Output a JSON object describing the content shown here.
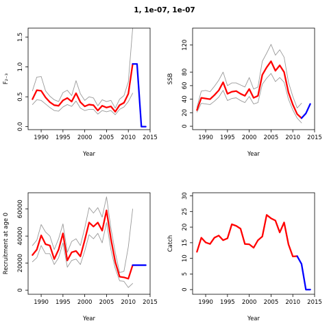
{
  "figure": {
    "title": "1, 1e-07, 1e-07"
  },
  "colors": {
    "estimate": "#ff0000",
    "projection": "#0000ff",
    "bounds": "#999999",
    "axis": "#000000"
  },
  "chart_data": [
    {
      "id": "F",
      "type": "line",
      "xlabel": "Year",
      "ylabel": "F₂₋₃",
      "xlim": [
        1987,
        2015
      ],
      "ylim": [
        -0.05,
        1.65
      ],
      "xticks": [
        1990,
        1995,
        2000,
        2005,
        2010,
        2015
      ],
      "yticks": [
        0.0,
        0.5,
        1.0,
        1.5
      ],
      "ytick_labels": [
        "0.0",
        "0.5",
        "1.0",
        "1.5"
      ],
      "series": [
        {
          "role": "estimate",
          "color": "#ff0000",
          "x": [
            1988,
            1989,
            1990,
            1991,
            1992,
            1993,
            1994,
            1995,
            1996,
            1997,
            1998,
            1999,
            2000,
            2001,
            2002,
            2003,
            2004,
            2005,
            2006,
            2007,
            2008,
            2009,
            2010,
            2011
          ],
          "y": [
            0.46,
            0.61,
            0.6,
            0.49,
            0.41,
            0.36,
            0.35,
            0.44,
            0.48,
            0.42,
            0.56,
            0.41,
            0.34,
            0.37,
            0.36,
            0.27,
            0.35,
            0.32,
            0.34,
            0.25,
            0.36,
            0.4,
            0.55,
            1.05
          ]
        },
        {
          "role": "upper",
          "color": "#999999",
          "x": [
            1988,
            1989,
            1990,
            1991,
            1992,
            1993,
            1994,
            1995,
            1996,
            1997,
            1998,
            1999,
            2000,
            2001,
            2002,
            2003,
            2004,
            2005,
            2006,
            2007,
            2008,
            2009,
            2010,
            2011
          ],
          "y": [
            0.6,
            0.83,
            0.84,
            0.6,
            0.51,
            0.45,
            0.42,
            0.57,
            0.61,
            0.52,
            0.77,
            0.55,
            0.44,
            0.5,
            0.48,
            0.35,
            0.45,
            0.42,
            0.44,
            0.31,
            0.46,
            0.52,
            0.75,
            1.65
          ]
        },
        {
          "role": "lower",
          "color": "#999999",
          "x": [
            1988,
            1989,
            1990,
            1991,
            1992,
            1993,
            1994,
            1995,
            1996,
            1997,
            1998,
            1999,
            2000,
            2001,
            2002,
            2003,
            2004,
            2005,
            2006,
            2007,
            2008,
            2009,
            2010,
            2011
          ],
          "y": [
            0.37,
            0.45,
            0.44,
            0.38,
            0.32,
            0.27,
            0.26,
            0.33,
            0.37,
            0.34,
            0.43,
            0.31,
            0.27,
            0.29,
            0.29,
            0.21,
            0.27,
            0.25,
            0.27,
            0.2,
            0.29,
            0.33,
            0.42,
            0.56
          ]
        },
        {
          "role": "projection",
          "color": "#0000ff",
          "x": [
            2011,
            2012,
            2013,
            2014
          ],
          "y": [
            1.05,
            1.05,
            0.0,
            0.0
          ]
        }
      ]
    },
    {
      "id": "SSB",
      "type": "line",
      "xlabel": "Year",
      "ylabel": "SSB",
      "xlim": [
        1987,
        2015
      ],
      "ylim": [
        -5,
        145
      ],
      "xticks": [
        1990,
        1995,
        2000,
        2005,
        2010,
        2015
      ],
      "yticks": [
        0,
        20,
        40,
        60,
        80,
        120
      ],
      "ytick_labels": [
        "0",
        "20",
        "40",
        "60",
        "80",
        "120"
      ],
      "series": [
        {
          "role": "estimate",
          "color": "#ff0000",
          "x": [
            1988,
            1989,
            1990,
            1991,
            1992,
            1993,
            1994,
            1995,
            1996,
            1997,
            1998,
            1999,
            2000,
            2001,
            2002,
            2003,
            2004,
            2005,
            2006,
            2007,
            2008,
            2009,
            2010,
            2011,
            2012
          ],
          "y": [
            24,
            42,
            41,
            40,
            46,
            53,
            65,
            48,
            51,
            52,
            48,
            45,
            55,
            42,
            45,
            76,
            87,
            96,
            82,
            90,
            80,
            50,
            32,
            18,
            12
          ]
        },
        {
          "role": "upper",
          "color": "#999999",
          "x": [
            1988,
            1989,
            1990,
            1991,
            1992,
            1993,
            1994,
            1995,
            1996,
            1997,
            1998,
            1999,
            2000,
            2001,
            2002,
            2003,
            2004,
            2005,
            2006,
            2007,
            2008,
            2009,
            2010,
            2011,
            2012
          ],
          "y": [
            28,
            52,
            53,
            51,
            59,
            68,
            80,
            60,
            64,
            64,
            61,
            58,
            72,
            55,
            58,
            96,
            108,
            121,
            105,
            113,
            102,
            65,
            44,
            27,
            34
          ]
        },
        {
          "role": "lower",
          "color": "#999999",
          "x": [
            1988,
            1989,
            1990,
            1991,
            1992,
            1993,
            1994,
            1995,
            1996,
            1997,
            1998,
            1999,
            2000,
            2001,
            2002,
            2003,
            2004,
            2005,
            2006,
            2007,
            2008,
            2009,
            2010,
            2011,
            2012
          ],
          "y": [
            21,
            34,
            33,
            32,
            37,
            43,
            53,
            38,
            41,
            42,
            38,
            35,
            44,
            33,
            35,
            62,
            71,
            78,
            66,
            72,
            65,
            40,
            24,
            12,
            5
          ]
        },
        {
          "role": "projection",
          "color": "#0000ff",
          "x": [
            2012,
            2013,
            2014
          ],
          "y": [
            12,
            19,
            33
          ]
        }
      ]
    },
    {
      "id": "Recruitment",
      "type": "line",
      "xlabel": "Year",
      "ylabel": "Recruitment at age 0",
      "xlim": [
        1987,
        2015
      ],
      "ylim": [
        -3000,
        72000
      ],
      "xticks": [
        1990,
        1995,
        2000,
        2005,
        2010,
        2015
      ],
      "yticks": [
        0,
        20000,
        40000,
        60000
      ],
      "ytick_labels": [
        "0",
        "20000",
        "40000",
        "60000"
      ],
      "series": [
        {
          "role": "estimate",
          "color": "#ff0000",
          "x": [
            1988,
            1989,
            1990,
            1991,
            1992,
            1993,
            1994,
            1995,
            1996,
            1997,
            1998,
            1999,
            2000,
            2001,
            2002,
            2003,
            2004,
            2005,
            2006,
            2007,
            2008,
            2009,
            2010,
            2011
          ],
          "y": [
            26000,
            30000,
            40500,
            34000,
            33000,
            23000,
            30000,
            42000,
            22000,
            28000,
            29000,
            25000,
            37000,
            50000,
            47000,
            50000,
            44000,
            59000,
            38000,
            21000,
            10000,
            9500,
            8500,
            18500
          ]
        },
        {
          "role": "upper",
          "color": "#999999",
          "x": [
            1988,
            1989,
            1990,
            1991,
            1992,
            1993,
            1994,
            1995,
            1996,
            1997,
            1998,
            1999,
            2000,
            2001,
            2002,
            2003,
            2004,
            2005,
            2006,
            2007,
            2008,
            2009,
            2010,
            2011
          ],
          "y": [
            33000,
            37000,
            48500,
            43000,
            40000,
            30000,
            38000,
            49000,
            28000,
            36000,
            38000,
            33000,
            46000,
            61000,
            57000,
            61000,
            54000,
            69000,
            46000,
            28000,
            13000,
            14000,
            32000,
            60000
          ]
        },
        {
          "role": "lower",
          "color": "#999999",
          "x": [
            1988,
            1989,
            1990,
            1991,
            1992,
            1993,
            1994,
            1995,
            1996,
            1997,
            1998,
            1999,
            2000,
            2001,
            2002,
            2003,
            2004,
            2005,
            2006,
            2007,
            2008,
            2009,
            2010,
            2011
          ],
          "y": [
            21000,
            24000,
            33000,
            27000,
            27000,
            19000,
            24000,
            35000,
            17000,
            22000,
            23000,
            19000,
            29000,
            41000,
            38000,
            42000,
            35000,
            50000,
            30000,
            16000,
            7000,
            6500,
            2000,
            5000
          ]
        },
        {
          "role": "projection",
          "color": "#0000ff",
          "x": [
            2011,
            2012,
            2013,
            2014
          ],
          "y": [
            18500,
            18500,
            18500,
            18500
          ]
        }
      ]
    },
    {
      "id": "Catch",
      "type": "line",
      "xlabel": "Year",
      "ylabel": "Catch",
      "xlim": [
        1987,
        2015
      ],
      "ylim": [
        -1.5,
        31
      ],
      "xticks": [
        1990,
        1995,
        2000,
        2005,
        2010,
        2015
      ],
      "yticks": [
        0,
        5,
        10,
        15,
        20,
        25,
        30
      ],
      "ytick_labels": [
        "0",
        "5",
        "10",
        "15",
        "20",
        "25",
        "30"
      ],
      "series": [
        {
          "role": "estimate",
          "color": "#ff0000",
          "x": [
            1988,
            1989,
            1990,
            1991,
            1992,
            1993,
            1994,
            1995,
            1996,
            1997,
            1998,
            1999,
            2000,
            2001,
            2002,
            2003,
            2004,
            2005,
            2006,
            2007,
            2008,
            2009,
            2010,
            2011
          ],
          "y": [
            12.1,
            16.6,
            15.1,
            14.6,
            16.6,
            17.3,
            15.8,
            16.4,
            20.9,
            20.4,
            19.5,
            14.6,
            14.5,
            13.4,
            15.8,
            17.0,
            23.9,
            22.8,
            22.1,
            18.3,
            21.5,
            14.5,
            10.6,
            10.7
          ]
        },
        {
          "role": "projection",
          "color": "#0000ff",
          "x": [
            2011,
            2012,
            2013,
            2014
          ],
          "y": [
            10.7,
            8.2,
            0.0,
            0.0
          ]
        }
      ]
    }
  ]
}
